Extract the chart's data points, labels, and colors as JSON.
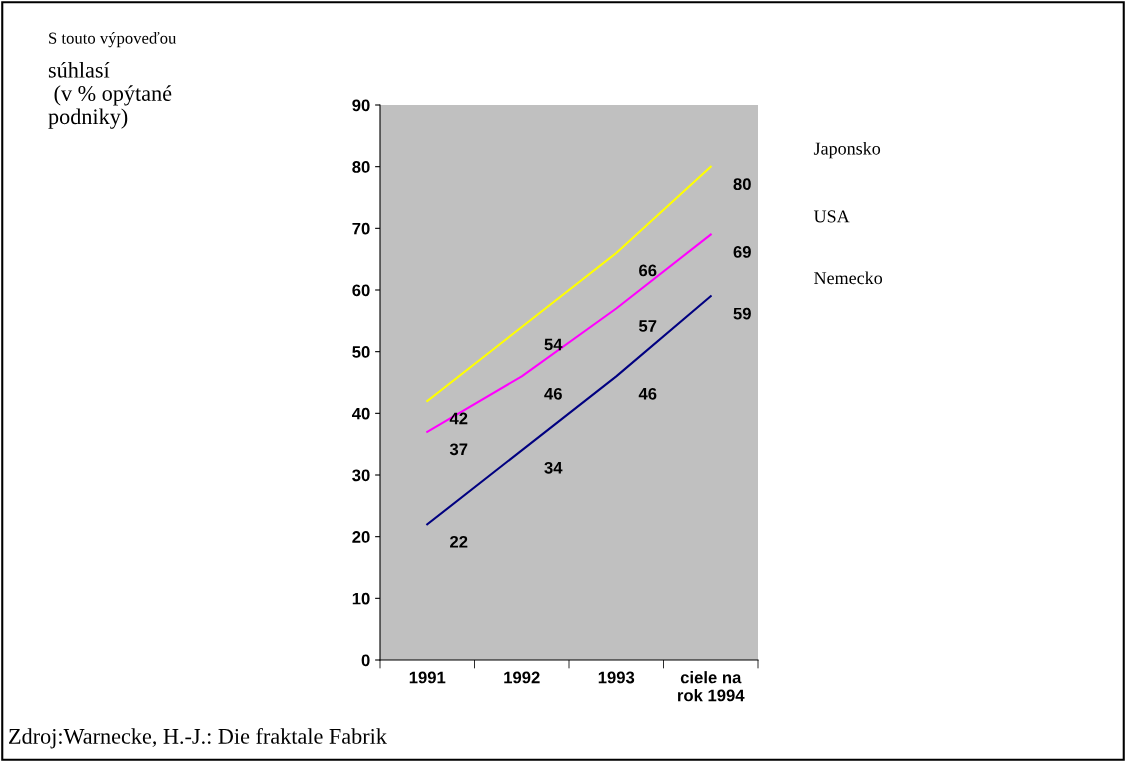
{
  "chart_data": {
    "type": "line",
    "categories": [
      "1991",
      "1992",
      "1993",
      "ciele na\nrok 1994"
    ],
    "series": [
      {
        "name": "Japonsko",
        "color": "#ffff00",
        "values": [
          42,
          54,
          66,
          80
        ]
      },
      {
        "name": "USA",
        "color": "#ff00ff",
        "values": [
          37,
          46,
          57,
          69
        ]
      },
      {
        "name": "Nemecko",
        "color": "#000080",
        "values": [
          22,
          34,
          46,
          59
        ]
      }
    ],
    "ylim": [
      0,
      90
    ],
    "yticks": [
      0,
      10,
      20,
      30,
      40,
      50,
      60,
      70,
      80,
      90
    ],
    "data_labels": true,
    "grid": false,
    "marker": "none",
    "line_style": "solid",
    "annotations": [
      "S touto výpoveďou",
      "súhlasí\n (v % opýtané\npodniky)",
      "Zdroj:Warnecke, H.-J.: Die fraktale Fabrik"
    ]
  }
}
